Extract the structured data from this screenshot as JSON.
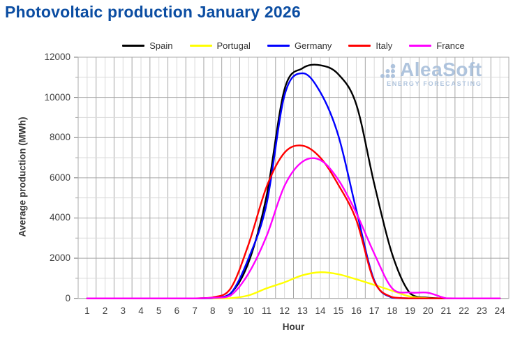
{
  "title": "Photovoltaic production January 2026",
  "colors": {
    "title": "#0B4DA2",
    "grid_major": "#A6A6A6",
    "grid_minor": "#D9D9D9",
    "plot_border": "#ABABAB",
    "axis_text": "#3F3F3F",
    "watermark": "#A9BFDB"
  },
  "watermark": {
    "brand": "AleaSoft",
    "tagline": "ENERGY FORECASTING"
  },
  "chart_data": {
    "type": "line",
    "title": "Photovoltaic production January 2026",
    "xlabel": "Hour",
    "ylabel": "Average production (MWh)",
    "x": [
      1,
      2,
      3,
      4,
      5,
      6,
      7,
      8,
      9,
      10,
      11,
      12,
      13,
      14,
      15,
      16,
      17,
      18,
      19,
      20,
      21,
      22,
      23,
      24
    ],
    "ylim": [
      0,
      12000
    ],
    "yticks": [
      0,
      2000,
      4000,
      6000,
      8000,
      10000,
      12000
    ],
    "grid": "major and minor, on",
    "legend_position": "top",
    "series": [
      {
        "name": "Spain",
        "color": "#000000",
        "values": [
          0,
          0,
          0,
          0,
          0,
          0,
          0,
          20,
          250,
          1800,
          5100,
          10400,
          11450,
          11600,
          11150,
          9650,
          5700,
          2200,
          250,
          30,
          0,
          0,
          0,
          0
        ]
      },
      {
        "name": "Portugal",
        "color": "#FFFF00",
        "values": [
          0,
          0,
          0,
          0,
          0,
          0,
          0,
          0,
          10,
          150,
          500,
          800,
          1150,
          1300,
          1200,
          950,
          670,
          380,
          90,
          10,
          0,
          0,
          0,
          0
        ]
      },
      {
        "name": "Germany",
        "color": "#0000FF",
        "values": [
          0,
          0,
          0,
          0,
          0,
          0,
          0,
          20,
          250,
          2000,
          4700,
          10100,
          11200,
          10250,
          8100,
          4400,
          900,
          30,
          0,
          0,
          0,
          0,
          0,
          0
        ]
      },
      {
        "name": "Italy",
        "color": "#FF0000",
        "values": [
          0,
          0,
          0,
          0,
          0,
          0,
          0,
          50,
          500,
          2700,
          5550,
          7250,
          7600,
          7000,
          5650,
          3900,
          850,
          60,
          0,
          0,
          0,
          0,
          0,
          0
        ]
      },
      {
        "name": "France",
        "color": "#FF00FF",
        "values": [
          0,
          0,
          0,
          0,
          0,
          0,
          0,
          30,
          150,
          1250,
          3100,
          5600,
          6800,
          6880,
          5900,
          4250,
          2230,
          500,
          290,
          280,
          10,
          0,
          0,
          0
        ]
      }
    ]
  }
}
